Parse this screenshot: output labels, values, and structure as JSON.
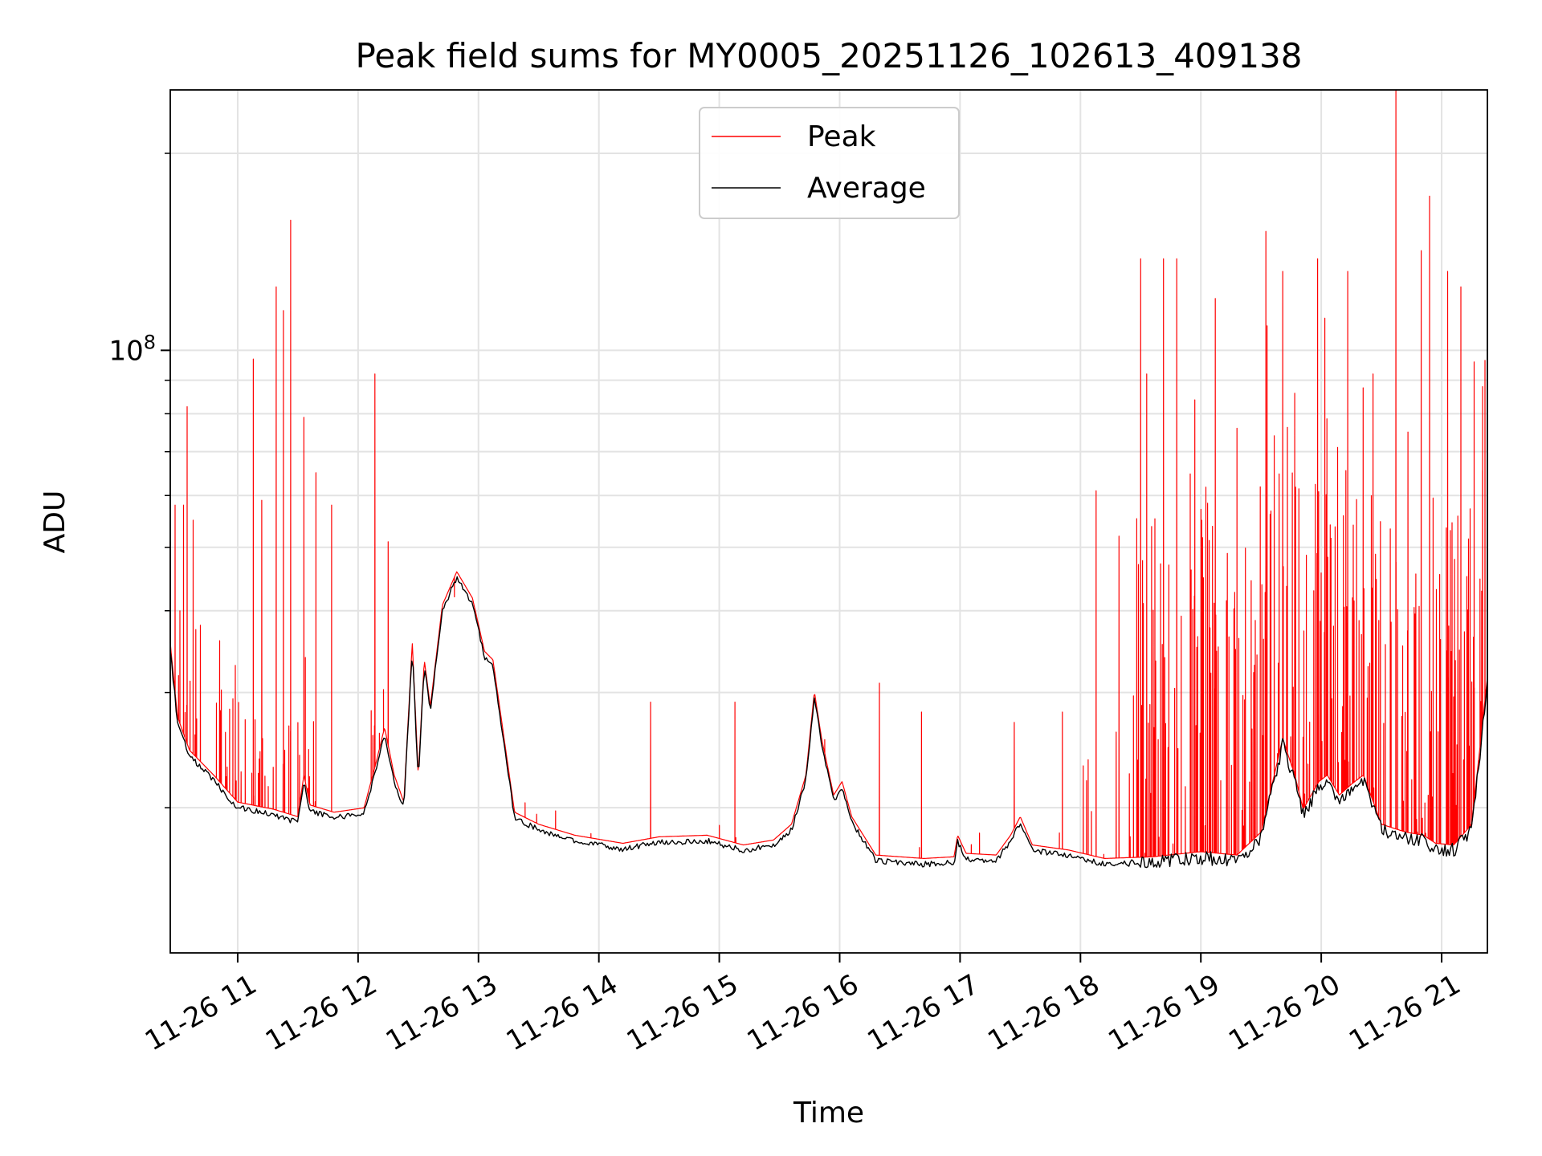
{
  "chart_data": {
    "type": "line",
    "title": "Peak field sums for MY0005_20251126_102613_409138",
    "xlabel": "Time",
    "ylabel": "ADU",
    "yscale": "log",
    "ylim": [
      12000000,
      250000000
    ],
    "xlim": [
      10.44,
      21.38
    ],
    "grid": true,
    "legend_position": "upper center",
    "x_ticks": [
      {
        "value": 11,
        "label": "11-26 11"
      },
      {
        "value": 12,
        "label": "11-26 12"
      },
      {
        "value": 13,
        "label": "11-26 13"
      },
      {
        "value": 14,
        "label": "11-26 14"
      },
      {
        "value": 15,
        "label": "11-26 15"
      },
      {
        "value": 16,
        "label": "11-26 16"
      },
      {
        "value": 17,
        "label": "11-26 17"
      },
      {
        "value": 18,
        "label": "11-26 18"
      },
      {
        "value": 19,
        "label": "11-26 19"
      },
      {
        "value": 20,
        "label": "11-26 20"
      },
      {
        "value": 21,
        "label": "11-26 21"
      }
    ],
    "y_major_ticks": [
      {
        "value": 100000000,
        "label_base": "10",
        "label_exp": "8"
      }
    ],
    "y_minor_ticks": [
      20000000,
      30000000,
      40000000,
      50000000,
      60000000,
      70000000,
      80000000,
      90000000,
      200000000
    ],
    "series": [
      {
        "name": "Peak",
        "color": "#ff0000",
        "baseline_note": "spiky series: Average baseline plus narrow spikes",
        "spikes": [
          [
            10.44,
            51000000
          ],
          [
            10.48,
            58000000
          ],
          [
            10.52,
            40000000
          ],
          [
            10.55,
            58000000
          ],
          [
            10.58,
            82000000
          ],
          [
            10.63,
            55000000
          ],
          [
            10.69,
            38000000
          ],
          [
            10.85,
            36000000
          ],
          [
            10.98,
            33000000
          ],
          [
            11.13,
            97000000
          ],
          [
            11.2,
            59000000
          ],
          [
            11.32,
            125000000
          ],
          [
            11.38,
            115000000
          ],
          [
            11.44,
            158000000
          ],
          [
            11.55,
            79000000
          ],
          [
            11.65,
            65000000
          ],
          [
            11.78,
            58000000
          ],
          [
            12.14,
            92000000
          ],
          [
            12.25,
            51000000
          ],
          [
            12.8,
            42000000
          ],
          [
            14.43,
            29000000
          ],
          [
            15.13,
            29000000
          ],
          [
            16.33,
            31000000
          ],
          [
            16.68,
            28000000
          ],
          [
            17.45,
            27000000
          ],
          [
            17.85,
            28000000
          ],
          [
            18.13,
            61000000
          ],
          [
            18.32,
            52000000
          ],
          [
            18.5,
            138000000
          ],
          [
            18.55,
            92000000
          ],
          [
            18.69,
            138000000
          ],
          [
            18.8,
            138000000
          ],
          [
            18.95,
            84000000
          ],
          [
            19.12,
            120000000
          ],
          [
            19.3,
            76000000
          ],
          [
            19.55,
            109000000
          ],
          [
            19.54,
            152000000
          ],
          [
            19.68,
            132000000
          ],
          [
            19.78,
            86000000
          ],
          [
            19.97,
            138000000
          ],
          [
            20.03,
            112000000
          ],
          [
            20.22,
            132000000
          ],
          [
            20.43,
            92000000
          ],
          [
            20.62,
            250000000
          ],
          [
            20.72,
            75000000
          ],
          [
            20.83,
            142000000
          ],
          [
            20.9,
            172000000
          ],
          [
            21.05,
            132000000
          ],
          [
            21.16,
            125000000
          ],
          [
            21.27,
            96000000
          ],
          [
            21.34,
            88000000
          ]
        ]
      },
      {
        "name": "Average",
        "color": "#000000",
        "points": [
          [
            10.44,
            35000000
          ],
          [
            10.5,
            27000000
          ],
          [
            10.6,
            24000000
          ],
          [
            10.8,
            22000000
          ],
          [
            11.0,
            20000000
          ],
          [
            11.3,
            19500000
          ],
          [
            11.5,
            19000000
          ],
          [
            11.55,
            22000000
          ],
          [
            11.6,
            19800000
          ],
          [
            11.8,
            19300000
          ],
          [
            12.05,
            19600000
          ],
          [
            12.15,
            23000000
          ],
          [
            12.22,
            26000000
          ],
          [
            12.3,
            22000000
          ],
          [
            12.38,
            20000000
          ],
          [
            12.45,
            35000000
          ],
          [
            12.5,
            22000000
          ],
          [
            12.55,
            33000000
          ],
          [
            12.6,
            28000000
          ],
          [
            12.7,
            40000000
          ],
          [
            12.82,
            45000000
          ],
          [
            12.95,
            41000000
          ],
          [
            13.05,
            34000000
          ],
          [
            13.12,
            33000000
          ],
          [
            13.2,
            26000000
          ],
          [
            13.3,
            19300000
          ],
          [
            13.5,
            18500000
          ],
          [
            13.8,
            17800000
          ],
          [
            14.2,
            17300000
          ],
          [
            14.5,
            17700000
          ],
          [
            14.9,
            17800000
          ],
          [
            15.2,
            17200000
          ],
          [
            15.45,
            17500000
          ],
          [
            15.6,
            18500000
          ],
          [
            15.72,
            22000000
          ],
          [
            15.79,
            29500000
          ],
          [
            15.85,
            25000000
          ],
          [
            15.95,
            20500000
          ],
          [
            16.02,
            21500000
          ],
          [
            16.1,
            19000000
          ],
          [
            16.3,
            16600000
          ],
          [
            16.7,
            16400000
          ],
          [
            16.95,
            16500000
          ],
          [
            16.98,
            17800000
          ],
          [
            17.05,
            16700000
          ],
          [
            17.3,
            16600000
          ],
          [
            17.42,
            17800000
          ],
          [
            17.5,
            19000000
          ],
          [
            17.6,
            17200000
          ],
          [
            17.9,
            16900000
          ],
          [
            18.2,
            16400000
          ],
          [
            18.6,
            16500000
          ],
          [
            19.0,
            16800000
          ],
          [
            19.3,
            16600000
          ],
          [
            19.5,
            18000000
          ],
          [
            19.68,
            25000000
          ],
          [
            19.78,
            22000000
          ],
          [
            19.85,
            19500000
          ],
          [
            19.98,
            21500000
          ],
          [
            20.05,
            22000000
          ],
          [
            20.15,
            20500000
          ],
          [
            20.25,
            21300000
          ],
          [
            20.35,
            22000000
          ],
          [
            20.5,
            18500000
          ],
          [
            20.7,
            18000000
          ],
          [
            20.85,
            17800000
          ],
          [
            20.95,
            17300000
          ],
          [
            21.1,
            17200000
          ],
          [
            21.25,
            18500000
          ],
          [
            21.38,
            31000000
          ]
        ]
      }
    ]
  }
}
